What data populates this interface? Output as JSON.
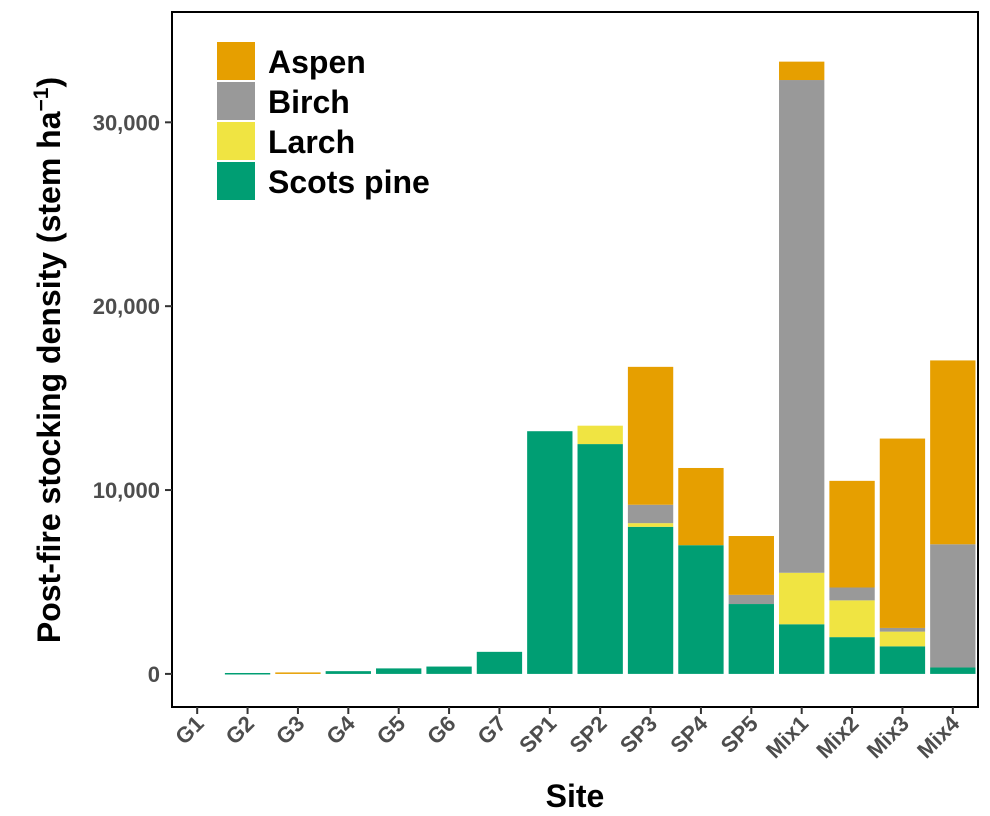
{
  "chart_data": {
    "type": "bar",
    "stacked": true,
    "title": "",
    "xlabel": "Site",
    "ylabel": "Post-fire stocking density (stem ha",
    "ylabel_superscript": "−1",
    "ylabel_close": ")",
    "ylim": [
      -1800,
      36000
    ],
    "yticks": [
      0,
      10000,
      20000,
      30000
    ],
    "ytick_labels": [
      "0",
      "10,000",
      "20,000",
      "30,000"
    ],
    "grid": false,
    "legend_position": "top-left",
    "categories": [
      "G1",
      "G2",
      "G3",
      "G4",
      "G5",
      "G6",
      "G7",
      "SP1",
      "SP2",
      "SP3",
      "SP4",
      "SP5",
      "Mix1",
      "Mix2",
      "Mix3",
      "Mix4"
    ],
    "series": [
      {
        "name": "Scots pine",
        "color": "#009E73",
        "values": [
          0,
          50,
          0,
          150,
          300,
          400,
          1200,
          13200,
          12500,
          8000,
          7000,
          3800,
          2700,
          2000,
          1500,
          350
        ]
      },
      {
        "name": "Larch",
        "color": "#F0E442",
        "values": [
          0,
          0,
          0,
          0,
          0,
          0,
          0,
          0,
          1000,
          200,
          0,
          0,
          2800,
          2000,
          800,
          0
        ]
      },
      {
        "name": "Birch",
        "color": "#999999",
        "values": [
          0,
          0,
          0,
          0,
          0,
          0,
          0,
          0,
          0,
          1000,
          0,
          500,
          26800,
          700,
          200,
          6700
        ]
      },
      {
        "name": "Aspen",
        "color": "#E69F00",
        "values": [
          0,
          0,
          80,
          0,
          0,
          0,
          0,
          0,
          0,
          7500,
          4200,
          3200,
          1000,
          5800,
          10300,
          10000
        ]
      }
    ],
    "legend_order": [
      "Aspen",
      "Birch",
      "Larch",
      "Scots pine"
    ]
  }
}
